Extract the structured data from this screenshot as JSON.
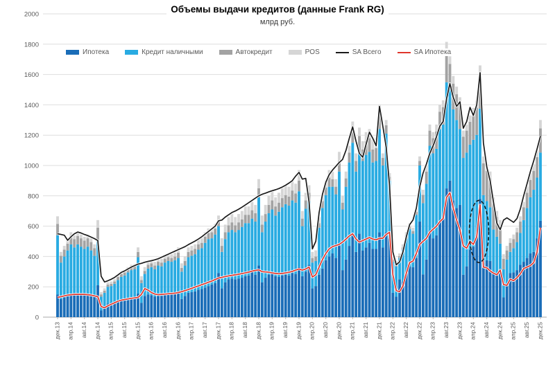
{
  "chart": {
    "title": "Объемы выдачи кредитов (данные Frank RG)",
    "subtitle": "млрд руб."
  },
  "chart_data": {
    "type": "bar",
    "stacked": true,
    "combo_lines": true,
    "title": "Объемы выдачи кредитов (данные Frank RG)",
    "subtitle": "млрд руб.",
    "xlabel": "",
    "ylabel": "",
    "ylim": [
      0,
      2000
    ],
    "ytick_step": 200,
    "grid": "horizontal",
    "legend_position": "top-left",
    "n_months": 145,
    "x_first": "дек.13",
    "x_last": "дек.25",
    "x_tick_every": 4,
    "x_tick_labels": [
      "дек.13",
      "апр.14",
      "авг.14",
      "дек.14",
      "апр.15",
      "авг.15",
      "дек.15",
      "апр.16",
      "авг.16",
      "дек.16",
      "апр.17",
      "авг.17",
      "дек.17",
      "апр.18",
      "авг.18",
      "дек.18",
      "апр.19",
      "авг.19",
      "дек.19",
      "апр.20",
      "авг.20",
      "дек.20",
      "апр.21",
      "авг.21",
      "дек.21",
      "апр.22",
      "авг.22",
      "дек.22",
      "апр.23",
      "авг.23",
      "дек.23",
      "апр.24",
      "авг.24",
      "дек.24",
      "апр.25",
      "авг.25",
      "дек.25"
    ],
    "series": [
      {
        "name": "Ипотека",
        "type": "bar",
        "color": "#1a6db8",
        "values": [
          150,
          120,
          130,
          140,
          150,
          145,
          150,
          155,
          150,
          155,
          150,
          145,
          210,
          45,
          60,
          90,
          95,
          100,
          105,
          110,
          115,
          120,
          125,
          130,
          155,
          95,
          140,
          150,
          145,
          135,
          140,
          140,
          145,
          150,
          155,
          160,
          170,
          120,
          140,
          160,
          165,
          170,
          180,
          185,
          195,
          205,
          215,
          225,
          290,
          190,
          230,
          250,
          255,
          250,
          255,
          260,
          270,
          275,
          300,
          280,
          340,
          230,
          260,
          280,
          290,
          270,
          265,
          275,
          280,
          275,
          290,
          285,
          330,
          270,
          300,
          345,
          190,
          205,
          280,
          320,
          375,
          400,
          420,
          390,
          470,
          310,
          380,
          470,
          550,
          430,
          550,
          440,
          460,
          490,
          450,
          450,
          560,
          460,
          560,
          520,
          160,
          135,
          250,
          235,
          290,
          335,
          330,
          390,
          630,
          282,
          380,
          570,
          520,
          540,
          630,
          650,
          849,
          900,
          770,
          720,
          740,
          280,
          335,
          445,
          465,
          540,
          780,
          360,
          375,
          370,
          300,
          290,
          290,
          130,
          220,
          290,
          295,
          310,
          345,
          365,
          390,
          420,
          430,
          520,
          635
        ]
      },
      {
        "name": "Кредит наличными",
        "type": "bar",
        "color": "#29abe2",
        "values": [
          390,
          240,
          270,
          300,
          330,
          315,
          330,
          310,
          300,
          310,
          290,
          260,
          290,
          90,
          100,
          110,
          110,
          120,
          140,
          155,
          160,
          175,
          185,
          185,
          240,
          130,
          145,
          170,
          185,
          180,
          200,
          195,
          215,
          220,
          210,
          215,
          220,
          180,
          200,
          235,
          240,
          245,
          265,
          270,
          295,
          310,
          305,
          320,
          310,
          240,
          285,
          310,
          320,
          310,
          320,
          335,
          350,
          345,
          350,
          350,
          450,
          330,
          370,
          405,
          420,
          400,
          430,
          450,
          465,
          460,
          480,
          470,
          500,
          330,
          415,
          420,
          170,
          165,
          310,
          400,
          430,
          460,
          440,
          420,
          490,
          400,
          480,
          550,
          600,
          530,
          540,
          590,
          610,
          600,
          570,
          580,
          680,
          540,
          650,
          380,
          205,
          200,
          140,
          210,
          230,
          245,
          220,
          285,
          370,
          470,
          500,
          560,
          560,
          570,
          610,
          620,
          700,
          610,
          600,
          580,
          500,
          770,
          750,
          693,
          705,
          662,
          595,
          445,
          390,
          355,
          278,
          240,
          195,
          185,
          160,
          140,
          160,
          185,
          210,
          275,
          330,
          370,
          410,
          400,
          450
        ]
      },
      {
        "name": "Автокредит",
        "type": "bar",
        "color": "#a3a3a3",
        "values": [
          75,
          45,
          45,
          45,
          55,
          55,
          55,
          55,
          55,
          55,
          55,
          50,
          90,
          15,
          15,
          15,
          15,
          15,
          20,
          20,
          20,
          20,
          20,
          20,
          35,
          20,
          20,
          25,
          25,
          25,
          25,
          25,
          25,
          25,
          25,
          25,
          35,
          25,
          30,
          35,
          35,
          35,
          35,
          35,
          40,
          40,
          40,
          40,
          40,
          40,
          45,
          45,
          50,
          45,
          50,
          50,
          55,
          55,
          55,
          55,
          60,
          50,
          50,
          55,
          60,
          60,
          60,
          60,
          60,
          60,
          65,
          60,
          70,
          50,
          55,
          55,
          30,
          30,
          30,
          45,
          50,
          60,
          50,
          50,
          70,
          45,
          55,
          65,
          85,
          70,
          105,
          75,
          90,
          90,
          85,
          85,
          95,
          50,
          55,
          25,
          15,
          15,
          12,
          15,
          18,
          18,
          18,
          20,
          30,
          55,
          80,
          100,
          100,
          115,
          115,
          115,
          215,
          160,
          170,
          170,
          170,
          140,
          145,
          150,
          165,
          180,
          230,
          210,
          200,
          190,
          170,
          130,
          110,
          70,
          60,
          60,
          60,
          65,
          75,
          85,
          100,
          115,
          125,
          135,
          160
        ]
      },
      {
        "name": "POS",
        "type": "bar",
        "color": "#d6d6d6",
        "values": [
          50,
          25,
          25,
          25,
          25,
          25,
          25,
          25,
          25,
          25,
          25,
          25,
          50,
          15,
          15,
          15,
          15,
          15,
          15,
          15,
          15,
          15,
          15,
          15,
          30,
          25,
          25,
          25,
          25,
          25,
          25,
          25,
          25,
          25,
          25,
          25,
          35,
          30,
          30,
          30,
          30,
          30,
          30,
          30,
          30,
          30,
          30,
          30,
          30,
          50,
          50,
          55,
          55,
          55,
          55,
          55,
          55,
          55,
          55,
          55,
          60,
          60,
          60,
          60,
          60,
          60,
          65,
          65,
          65,
          65,
          65,
          65,
          70,
          50,
          50,
          50,
          40,
          40,
          40,
          45,
          45,
          50,
          50,
          50,
          60,
          45,
          45,
          45,
          55,
          50,
          55,
          55,
          60,
          60,
          65,
          65,
          65,
          30,
          35,
          25,
          20,
          20,
          18,
          20,
          22,
          22,
          22,
          25,
          30,
          33,
          40,
          40,
          40,
          45,
          45,
          45,
          51,
          50,
          50,
          50,
          40,
          40,
          40,
          42,
          45,
          48,
          55,
          45,
          45,
          45,
          42,
          40,
          45,
          30,
          30,
          30,
          30,
          30,
          35,
          35,
          40,
          45,
          45,
          45,
          55
        ]
      },
      {
        "name": "SA Всего",
        "type": "line",
        "color": "#1a1a1a",
        "values": [
          550,
          545,
          540,
          507,
          530,
          550,
          561,
          555,
          545,
          538,
          528,
          518,
          505,
          270,
          232,
          240,
          250,
          262,
          278,
          295,
          305,
          318,
          330,
          340,
          350,
          355,
          362,
          368,
          372,
          378,
          385,
          395,
          405,
          415,
          425,
          435,
          445,
          455,
          465,
          478,
          490,
          502,
          515,
          530,
          548,
          565,
          582,
          600,
          635,
          640,
          660,
          675,
          690,
          700,
          712,
          725,
          740,
          755,
          770,
          785,
          800,
          810,
          818,
          826,
          834,
          840,
          848,
          858,
          870,
          884,
          900,
          930,
          955,
          910,
          915,
          760,
          450,
          500,
          690,
          810,
          890,
          940,
          970,
          995,
          1020,
          1040,
          1100,
          1180,
          1255,
          1160,
          1080,
          1055,
          1140,
          1220,
          1180,
          1130,
          1390,
          1260,
          1120,
          870,
          430,
          345,
          365,
          430,
          530,
          610,
          640,
          720,
          860,
          950,
          1010,
          1080,
          1130,
          1190,
          1260,
          1290,
          1440,
          1540,
          1450,
          1390,
          1420,
          1246,
          1290,
          1383,
          1330,
          1400,
          1612,
          1150,
          990,
          900,
          760,
          620,
          577,
          640,
          655,
          640,
          625,
          650,
          713,
          800,
          880,
          960,
          1030,
          1110,
          1193
        ]
      },
      {
        "name": "SA Ипотека",
        "type": "line",
        "color": "#df352b",
        "values": [
          130,
          135,
          140,
          145,
          148,
          150,
          150,
          150,
          150,
          148,
          145,
          140,
          135,
          70,
          62,
          75,
          85,
          95,
          105,
          112,
          116,
          120,
          124,
          127,
          130,
          150,
          188,
          178,
          162,
          152,
          148,
          150,
          152,
          154,
          156,
          158,
          162,
          168,
          175,
          182,
          190,
          198,
          206,
          214,
          222,
          230,
          238,
          248,
          258,
          262,
          268,
          272,
          276,
          279,
          283,
          287,
          292,
          297,
          303,
          308,
          312,
          300,
          298,
          296,
          292,
          288,
          286,
          288,
          292,
          296,
          302,
          310,
          318,
          310,
          318,
          330,
          265,
          280,
          330,
          380,
          420,
          450,
          465,
          472,
          480,
          495,
          515,
          535,
          550,
          515,
          495,
          505,
          515,
          525,
          515,
          510,
          520,
          520,
          545,
          560,
          280,
          175,
          168,
          205,
          290,
          360,
          370,
          420,
          480,
          500,
          520,
          560,
          580,
          600,
          630,
          650,
          790,
          820,
          720,
          640,
          575,
          470,
          455,
          500,
          480,
          530,
          740,
          330,
          325,
          305,
          290,
          280,
          310,
          215,
          210,
          250,
          240,
          260,
          285,
          320,
          330,
          340,
          360,
          430,
          590
        ]
      }
    ],
    "annotation": {
      "shape": "dashed-ellipse",
      "center_month_index": 125.7,
      "center_value": 565,
      "radius_months": 2.9,
      "radius_value": 205,
      "stroke": "#141414"
    }
  }
}
